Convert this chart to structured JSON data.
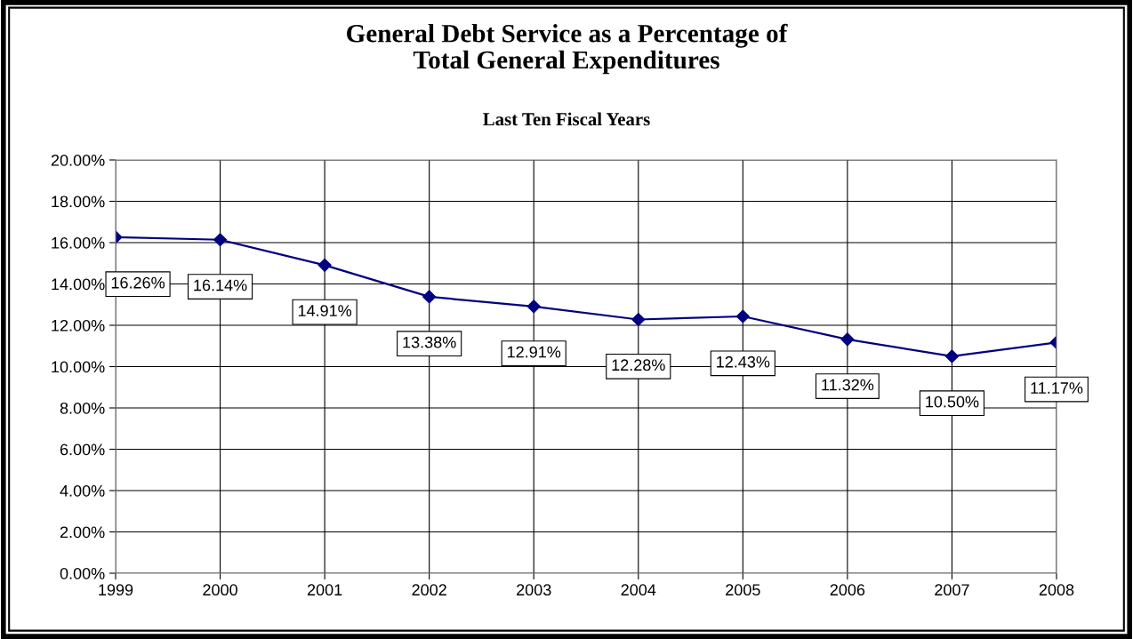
{
  "chart_data": {
    "type": "line",
    "title": "General Debt Service as a Percentage of\nTotal General Expenditures",
    "subtitle": "Last Ten Fiscal Years",
    "x": [
      1999,
      2000,
      2001,
      2002,
      2003,
      2004,
      2005,
      2006,
      2007,
      2008
    ],
    "series": [
      {
        "color": "#000080",
        "values": [
          16.26,
          16.14,
          14.91,
          13.38,
          12.91,
          12.28,
          12.43,
          11.32,
          10.5,
          11.17
        ],
        "value_labels": [
          "16.26%",
          "16.14%",
          "14.91%",
          "13.38%",
          "12.91%",
          "12.28%",
          "12.43%",
          "11.32%",
          "10.50%",
          "11.17%"
        ]
      }
    ],
    "xlim": [
      1999,
      2008
    ],
    "xticks": [
      1999,
      2000,
      2001,
      2002,
      2003,
      2004,
      2005,
      2006,
      2007,
      2008
    ],
    "ylim": [
      0,
      20
    ],
    "yticks": [
      {
        "value": 0,
        "label": "0.00%"
      },
      {
        "value": 2,
        "label": "2.00%"
      },
      {
        "value": 4,
        "label": "4.00%"
      },
      {
        "value": 6,
        "label": "6.00%"
      },
      {
        "value": 8,
        "label": "8.00%"
      },
      {
        "value": 10,
        "label": "10.00%"
      },
      {
        "value": 12,
        "label": "12.00%"
      },
      {
        "value": 14,
        "label": "14.00%"
      },
      {
        "value": 16,
        "label": "16.00%"
      },
      {
        "value": 18,
        "label": "18.00%"
      },
      {
        "value": 20,
        "label": "20.00%"
      }
    ],
    "grid": true,
    "marker": "diamond",
    "line_style": "solid",
    "legend": false
  }
}
